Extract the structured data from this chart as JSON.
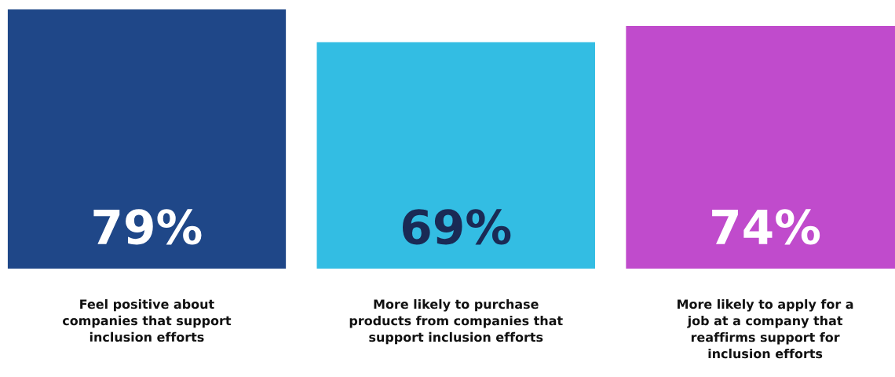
{
  "chart_data": {
    "type": "bar",
    "categories": [
      "Feel positive about\ncompanies that support\ninclusion efforts",
      "More likely to purchase\nproducts from companies that\nsupport inclusion efforts",
      "More likely to apply for a\njob at a company that\nreaffirms support for\ninclusion efforts"
    ],
    "values": [
      79,
      69,
      74
    ],
    "colors": [
      "#1f4788",
      "#33bde3",
      "#c04bcc"
    ],
    "value_labels": [
      "79%",
      "69%",
      "74%"
    ],
    "grid": false,
    "legend": false
  }
}
